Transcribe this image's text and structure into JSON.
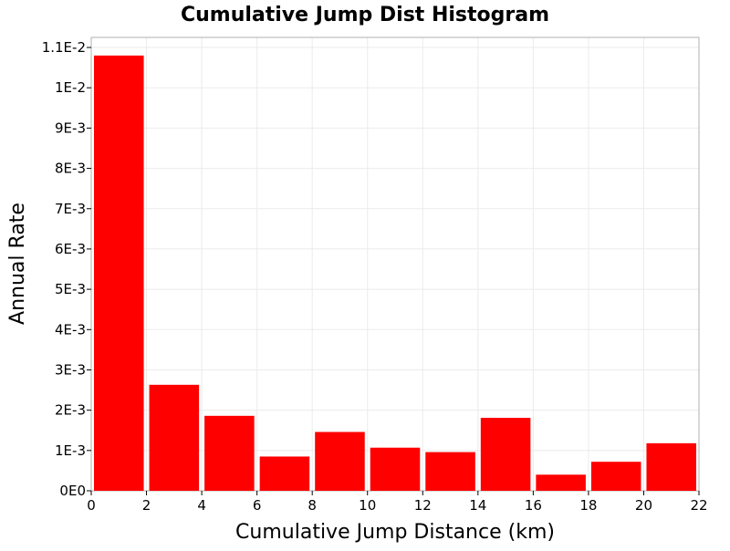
{
  "chart_data": {
    "type": "bar",
    "title": "Cumulative Jump Dist Histogram",
    "xlabel": "Cumulative Jump Distance (km)",
    "ylabel": "Annual Rate",
    "xlim": [
      0,
      22
    ],
    "ylim": [
      0,
      0.01125
    ],
    "x_ticks": [
      {
        "value": 0,
        "label": "0"
      },
      {
        "value": 2,
        "label": "2"
      },
      {
        "value": 4,
        "label": "4"
      },
      {
        "value": 6,
        "label": "6"
      },
      {
        "value": 8,
        "label": "8"
      },
      {
        "value": 10,
        "label": "10"
      },
      {
        "value": 12,
        "label": "12"
      },
      {
        "value": 14,
        "label": "14"
      },
      {
        "value": 16,
        "label": "16"
      },
      {
        "value": 18,
        "label": "18"
      },
      {
        "value": 20,
        "label": "20"
      },
      {
        "value": 22,
        "label": "22"
      }
    ],
    "y_ticks": [
      {
        "value": 0,
        "label": "0E0"
      },
      {
        "value": 0.001,
        "label": "1E-3"
      },
      {
        "value": 0.002,
        "label": "2E-3"
      },
      {
        "value": 0.003,
        "label": "3E-3"
      },
      {
        "value": 0.004,
        "label": "4E-3"
      },
      {
        "value": 0.005,
        "label": "5E-3"
      },
      {
        "value": 0.006,
        "label": "6E-3"
      },
      {
        "value": 0.007,
        "label": "7E-3"
      },
      {
        "value": 0.008,
        "label": "8E-3"
      },
      {
        "value": 0.009,
        "label": "9E-3"
      },
      {
        "value": 0.01,
        "label": "1E-2"
      },
      {
        "value": 0.011,
        "label": "1.1E-2"
      }
    ],
    "bars": [
      {
        "x0": 0,
        "x1": 2,
        "value": 0.0108
      },
      {
        "x0": 2,
        "x1": 4,
        "value": 0.00263
      },
      {
        "x0": 4,
        "x1": 6,
        "value": 0.00186
      },
      {
        "x0": 6,
        "x1": 8,
        "value": 0.00085
      },
      {
        "x0": 8,
        "x1": 10,
        "value": 0.00146
      },
      {
        "x0": 10,
        "x1": 12,
        "value": 0.00107
      },
      {
        "x0": 12,
        "x1": 14,
        "value": 0.00096
      },
      {
        "x0": 14,
        "x1": 16,
        "value": 0.00181
      },
      {
        "x0": 16,
        "x1": 18,
        "value": 0.0004
      },
      {
        "x0": 18,
        "x1": 20,
        "value": 0.00072
      },
      {
        "x0": 20,
        "x1": 22,
        "value": 0.00118
      }
    ],
    "bar_color": "#ff0000",
    "grid": true,
    "grid_color": "#ebebeb",
    "plot_border_color": "#b0b0b0",
    "legend": "none"
  }
}
